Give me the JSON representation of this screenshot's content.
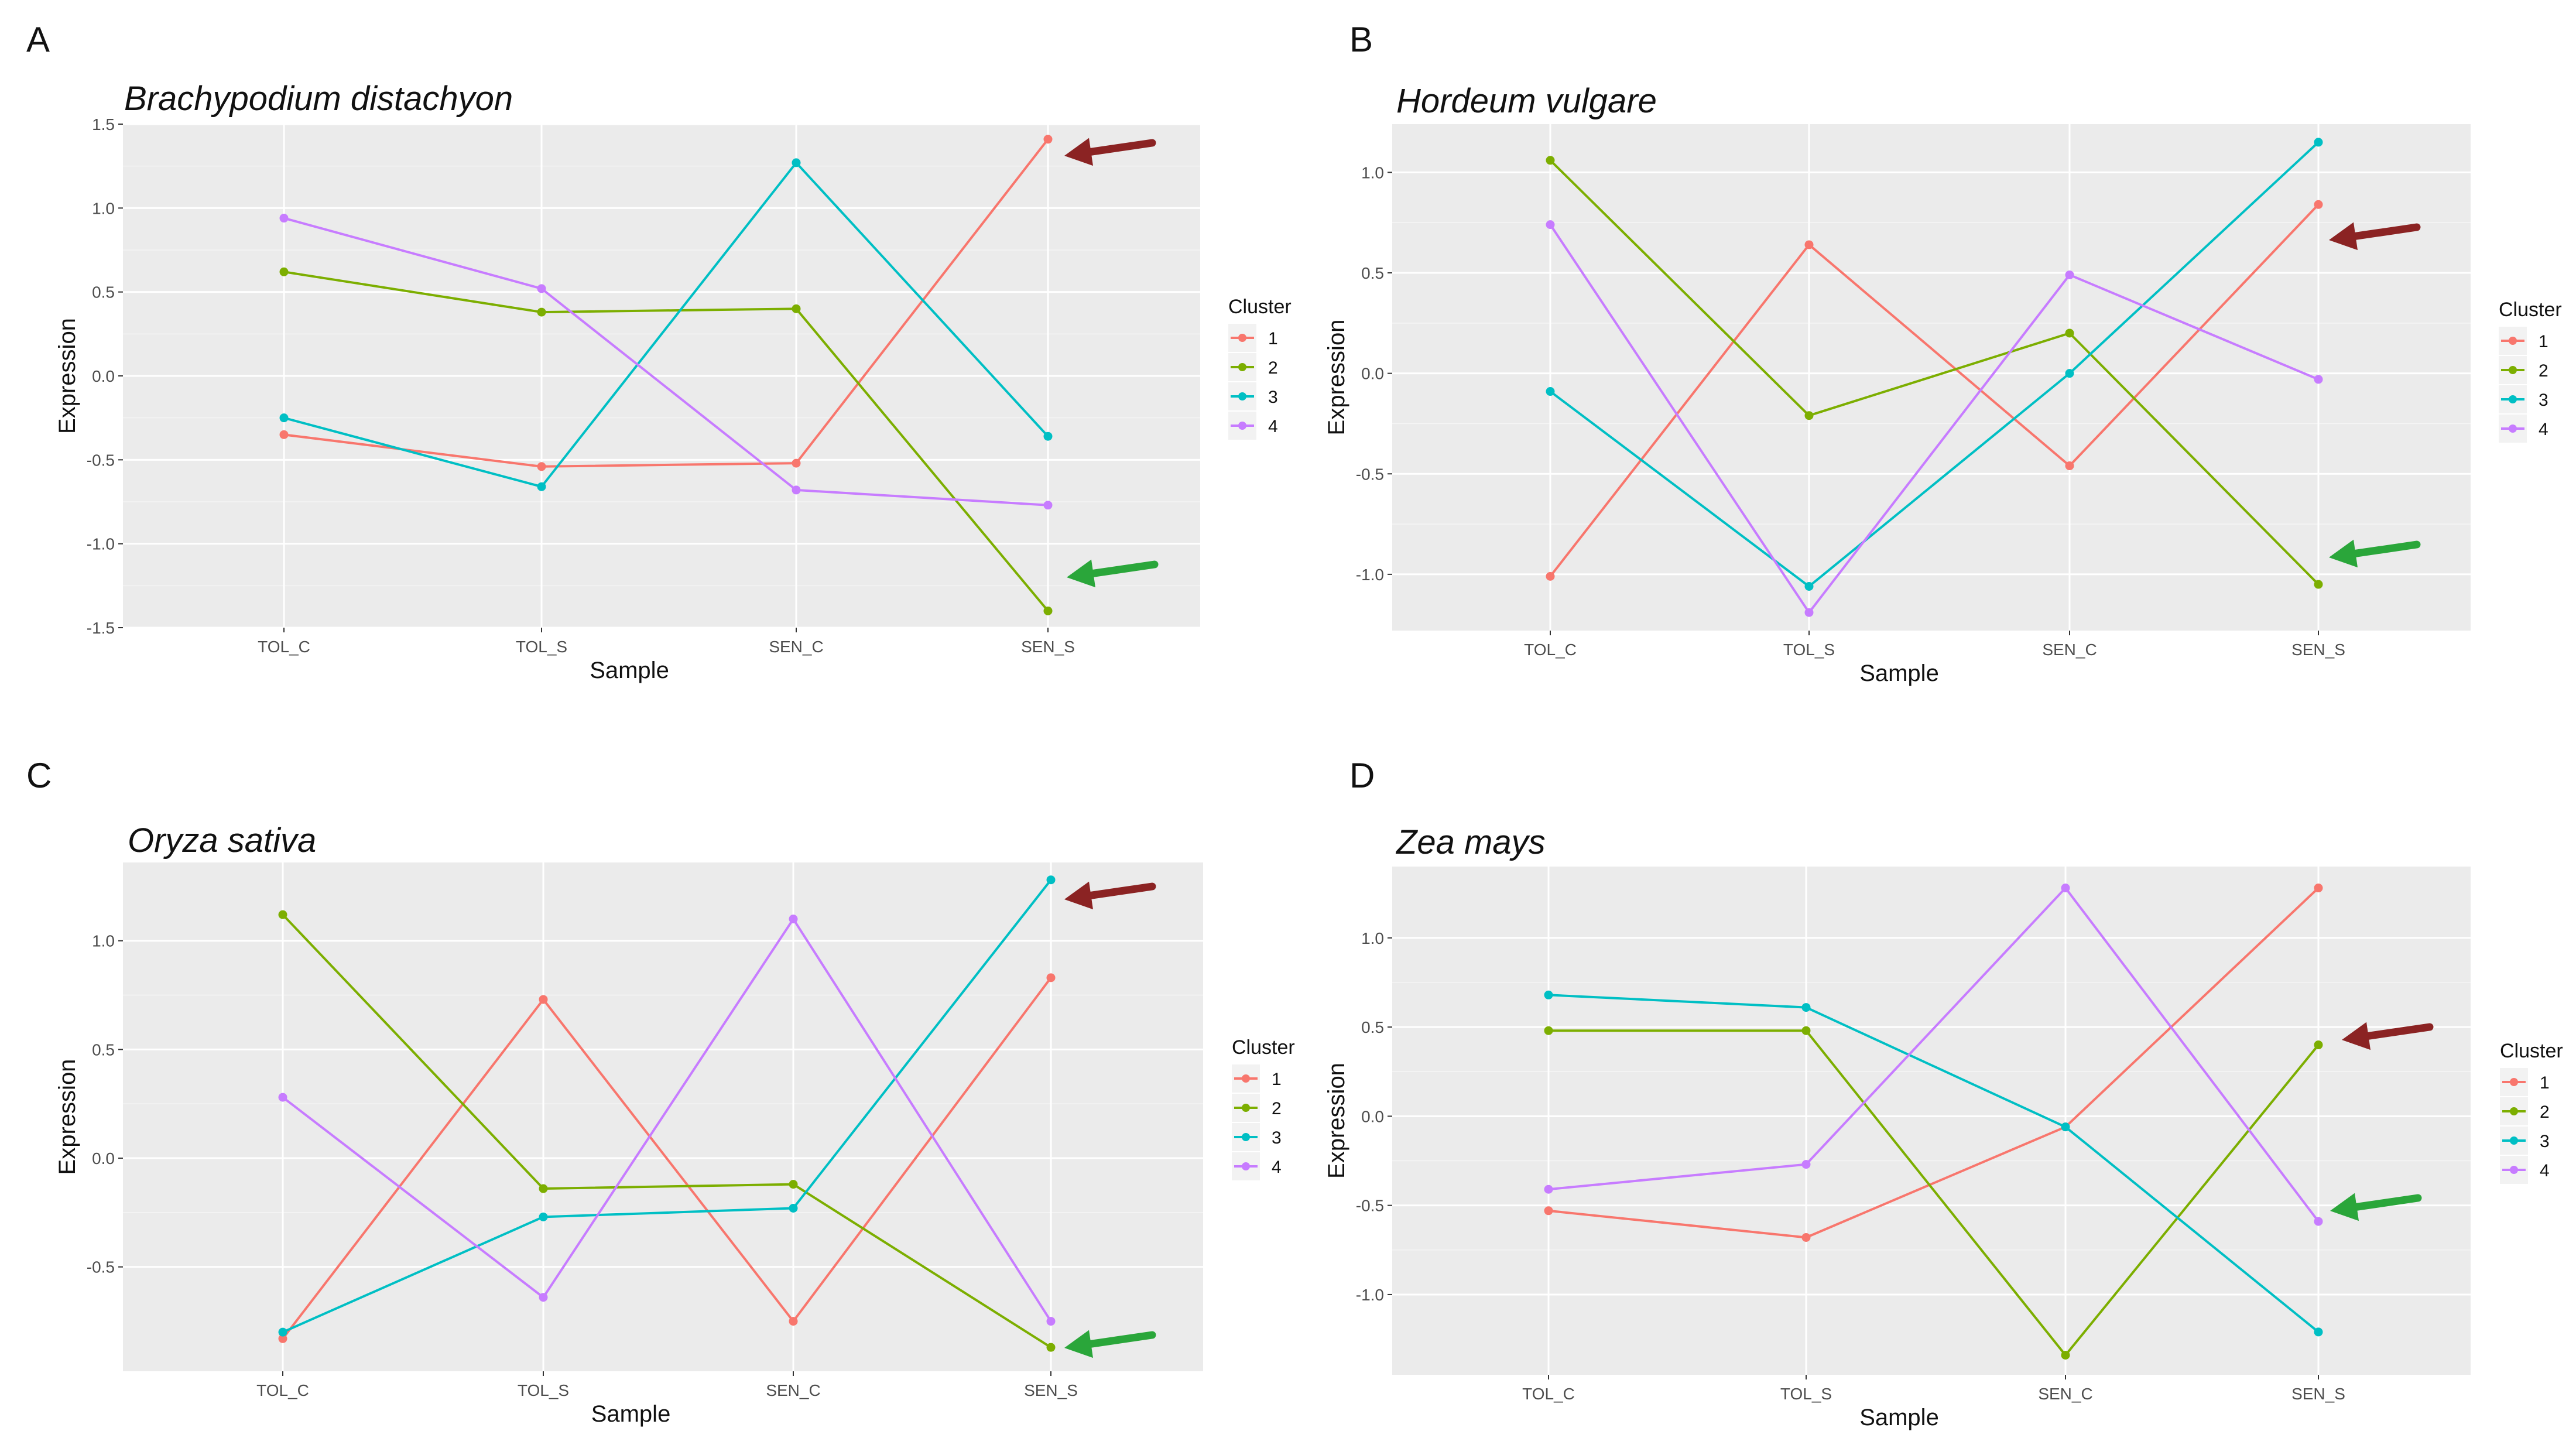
{
  "chart_data": [
    {
      "type": "line",
      "panel_label": "A",
      "title": "Brachypodium distachyon",
      "xlabel": "Sample",
      "ylabel": "Expression",
      "categories": [
        "TOL_C",
        "TOL_S",
        "SEN_C",
        "SEN_S"
      ],
      "ylim": [
        -1.5,
        1.5
      ],
      "yticks": [
        -1.5,
        -1.0,
        -0.5,
        0.0,
        0.5,
        1.0,
        1.5
      ],
      "ytick_labels": [
        "-1.5",
        "-1.0",
        "-0.5",
        "0.0",
        "0.5",
        "1.0",
        "1.5"
      ],
      "legend_title": "Cluster",
      "series": [
        {
          "name": "1",
          "color": "#F8766D",
          "values": [
            -0.35,
            -0.54,
            -0.52,
            1.41
          ]
        },
        {
          "name": "2",
          "color": "#7CAE00",
          "values": [
            0.62,
            0.38,
            0.4,
            -1.4
          ]
        },
        {
          "name": "3",
          "color": "#00BFC4",
          "values": [
            -0.25,
            -0.66,
            1.27,
            -0.36
          ]
        },
        {
          "name": "4",
          "color": "#C77CFF",
          "values": [
            0.94,
            0.52,
            -0.68,
            -0.77
          ]
        }
      ],
      "arrows": [
        {
          "color": "#8B2323",
          "target": "1"
        },
        {
          "color": "#2AA63A",
          "target": "2"
        }
      ]
    },
    {
      "type": "line",
      "panel_label": "B",
      "title": "Hordeum vulgare",
      "xlabel": "Sample",
      "ylabel": "Expression",
      "categories": [
        "TOL_C",
        "TOL_S",
        "SEN_C",
        "SEN_S"
      ],
      "ylim": [
        -1.28,
        1.24
      ],
      "yticks": [
        -1.0,
        -0.5,
        0.0,
        0.5,
        1.0
      ],
      "ytick_labels": [
        "-1.0",
        "-0.5",
        "0.0",
        "0.5",
        "1.0"
      ],
      "legend_title": "Cluster",
      "series": [
        {
          "name": "1",
          "color": "#F8766D",
          "values": [
            -1.01,
            0.64,
            -0.46,
            0.84
          ]
        },
        {
          "name": "2",
          "color": "#7CAE00",
          "values": [
            1.06,
            -0.21,
            0.2,
            -1.05
          ]
        },
        {
          "name": "3",
          "color": "#00BFC4",
          "values": [
            -0.09,
            -1.06,
            0.0,
            1.15
          ]
        },
        {
          "name": "4",
          "color": "#C77CFF",
          "values": [
            0.74,
            -1.19,
            0.49,
            -0.03
          ]
        }
      ],
      "arrows": [
        {
          "color": "#8B2323",
          "target": "1"
        },
        {
          "color": "#2AA63A",
          "target": "2"
        }
      ]
    },
    {
      "type": "line",
      "panel_label": "C",
      "title": "Oryza sativa",
      "xlabel": "Sample",
      "ylabel": "Expression",
      "categories": [
        "TOL_C",
        "TOL_S",
        "SEN_C",
        "SEN_S"
      ],
      "ylim": [
        -0.98,
        1.36
      ],
      "yticks": [
        -0.5,
        0.0,
        0.5,
        1.0
      ],
      "ytick_labels": [
        "-0.5",
        "0.0",
        "0.5",
        "1.0"
      ],
      "legend_title": "Cluster",
      "series": [
        {
          "name": "1",
          "color": "#F8766D",
          "values": [
            -0.83,
            0.73,
            -0.75,
            0.83
          ]
        },
        {
          "name": "2",
          "color": "#7CAE00",
          "values": [
            1.12,
            -0.14,
            -0.12,
            -0.87
          ]
        },
        {
          "name": "3",
          "color": "#00BFC4",
          "values": [
            -0.8,
            -0.27,
            -0.23,
            1.28
          ]
        },
        {
          "name": "4",
          "color": "#C77CFF",
          "values": [
            0.28,
            -0.64,
            1.1,
            -0.75
          ]
        }
      ],
      "arrows": [
        {
          "color": "#8B2323",
          "target": "3"
        },
        {
          "color": "#2AA63A",
          "target": "2"
        }
      ]
    },
    {
      "type": "line",
      "panel_label": "D",
      "title": "Zea mays",
      "xlabel": "Sample",
      "ylabel": "Expression",
      "categories": [
        "TOL_C",
        "TOL_S",
        "SEN_C",
        "SEN_S"
      ],
      "ylim": [
        -1.45,
        1.4
      ],
      "yticks": [
        -1.0,
        -0.5,
        0.0,
        0.5,
        1.0
      ],
      "ytick_labels": [
        "-1.0",
        "-0.5",
        "0.0",
        "0.5",
        "1.0"
      ],
      "legend_title": "Cluster",
      "series": [
        {
          "name": "1",
          "color": "#F8766D",
          "values": [
            -0.53,
            -0.68,
            -0.06,
            1.28
          ]
        },
        {
          "name": "2",
          "color": "#7CAE00",
          "values": [
            0.48,
            0.48,
            -1.34,
            0.4
          ]
        },
        {
          "name": "3",
          "color": "#00BFC4",
          "values": [
            0.68,
            0.61,
            -0.06,
            -1.21
          ]
        },
        {
          "name": "4",
          "color": "#C77CFF",
          "values": [
            -0.41,
            -0.27,
            1.28,
            -0.59
          ]
        }
      ],
      "arrows": [
        {
          "color": "#8B2323",
          "target": "2"
        },
        {
          "color": "#2AA63A",
          "target": "4"
        }
      ]
    }
  ]
}
